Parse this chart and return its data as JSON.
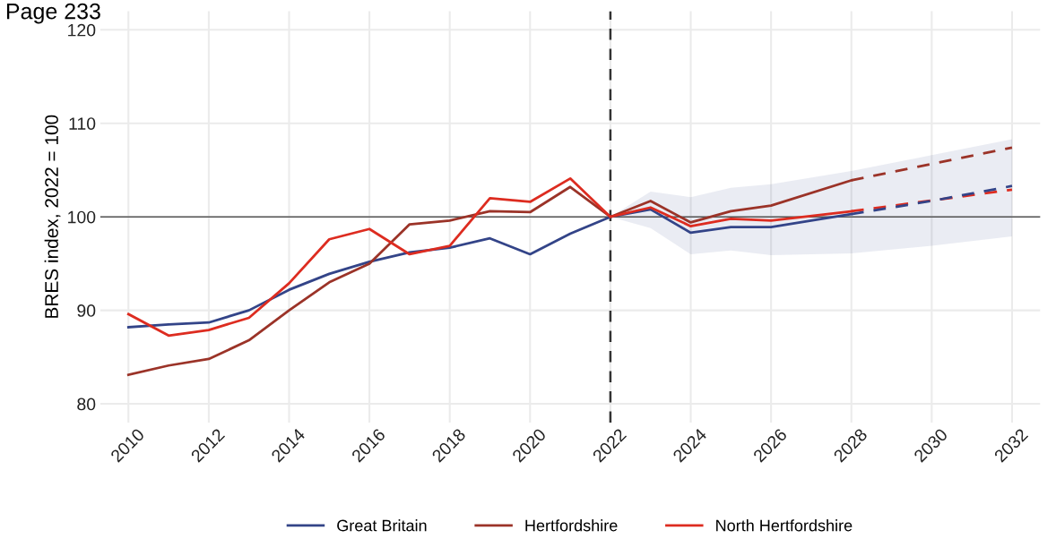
{
  "chart_data": {
    "type": "line",
    "ylabel": "BRES index, 2022 = 100",
    "annotations": [
      "Page 233"
    ],
    "xlim": [
      2009.3,
      2032.7
    ],
    "xticks": [
      2010,
      2012,
      2014,
      2016,
      2018,
      2020,
      2022,
      2024,
      2026,
      2028,
      2030,
      2032
    ],
    "ylim": [
      78,
      122
    ],
    "yticks": [
      80,
      90,
      100,
      110,
      120
    ],
    "grid": true,
    "legend": "bottom",
    "line_style": "solid",
    "marker": "none",
    "ref_lines": [
      {
        "axis": "y",
        "value": 100,
        "color": "#555555",
        "line_style": "solid"
      },
      {
        "axis": "x",
        "value": 2022,
        "color": "#333333",
        "line_style": "dashed"
      }
    ],
    "series": [
      {
        "name": "Great Britain",
        "color": "#334488",
        "x": [
          2010,
          2011,
          2012,
          2013,
          2014,
          2015,
          2016,
          2017,
          2018,
          2019,
          2020,
          2021,
          2022,
          2023,
          2024,
          2025,
          2026,
          2028
        ],
        "values": [
          88.2,
          88.5,
          88.7,
          90.0,
          92.2,
          93.9,
          95.2,
          96.2,
          96.7,
          97.7,
          96.0,
          98.2,
          100,
          100.8,
          98.3,
          98.9,
          98.9,
          100.3
        ]
      },
      {
        "name": "Hertfordshire",
        "color": "#9b3328",
        "x": [
          2010,
          2011,
          2012,
          2013,
          2014,
          2015,
          2016,
          2017,
          2018,
          2019,
          2020,
          2021,
          2022,
          2023,
          2024,
          2025,
          2026,
          2028
        ],
        "values": [
          83.1,
          84.1,
          84.8,
          86.8,
          90.0,
          93.0,
          95.0,
          99.2,
          99.6,
          100.6,
          100.5,
          103.2,
          100,
          101.7,
          99.4,
          100.6,
          101.2,
          103.9
        ]
      },
      {
        "name": "North Hertfordshire",
        "color": "#dd2c20",
        "x": [
          2010,
          2011,
          2012,
          2013,
          2014,
          2015,
          2016,
          2017,
          2018,
          2019,
          2020,
          2021,
          2022,
          2023,
          2024,
          2025,
          2026,
          2028
        ],
        "values": [
          89.6,
          87.3,
          87.9,
          89.2,
          92.9,
          97.6,
          98.7,
          96.0,
          96.9,
          102.0,
          101.6,
          104.1,
          100,
          101.0,
          99.0,
          99.8,
          99.6,
          100.6
        ]
      },
      {
        "color": "#9b3328",
        "line_style": "dashed",
        "x": [
          2028,
          2032
        ],
        "values": [
          103.9,
          107.4
        ]
      },
      {
        "color": "#dd2c20",
        "line_style": "dashed",
        "x": [
          2028,
          2032
        ],
        "values": [
          100.6,
          102.9
        ]
      },
      {
        "color": "#334488",
        "line_style": "dashed",
        "x": [
          2022,
          2023,
          2024,
          2025,
          2026,
          2028,
          2030,
          2032
        ],
        "values": [
          null,
          null,
          null,
          null,
          null,
          100.3,
          101.7,
          103.3
        ],
        "lower": [
          100,
          98.8,
          96.0,
          96.4,
          95.9,
          96.1,
          96.9,
          97.9
        ],
        "upper": [
          100,
          102.7,
          102.1,
          103.1,
          103.5,
          104.9,
          106.6,
          108.3
        ]
      }
    ]
  }
}
